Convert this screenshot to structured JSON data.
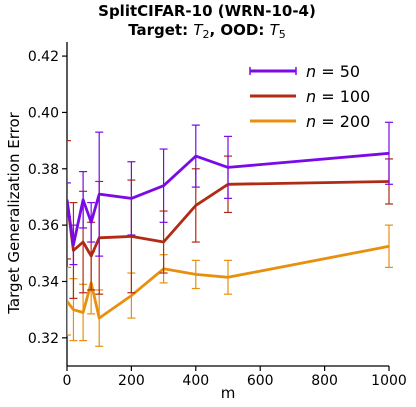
{
  "chart_data": {
    "type": "line",
    "title_line1": "SplitCIFAR-10 (WRN-10-4)",
    "title_line2_prefix": "Target: ",
    "title_line2_target": "T",
    "title_line2_target_sub": "2",
    "title_line2_mid": ", OOD: ",
    "title_line2_ood": "T",
    "title_line2_ood_sub": "5",
    "xlabel": "m",
    "ylabel": "Target Generalization Error",
    "xlim": [
      0,
      1000
    ],
    "ylim": [
      0.31,
      0.425
    ],
    "xticks": [
      "0",
      "200",
      "400",
      "600",
      "800",
      "1000"
    ],
    "yticks": [
      "0.32",
      "0.34",
      "0.36",
      "0.38",
      "0.40",
      "0.42"
    ],
    "legend_position": "top-right",
    "x": [
      0,
      20,
      50,
      75,
      100,
      200,
      300,
      400,
      500,
      1000
    ],
    "series": [
      {
        "name": "n = 50",
        "legend_var": "n",
        "legend_val": "= 50",
        "color": "#7a0ae6",
        "values": [
          0.369,
          0.353,
          0.369,
          0.361,
          0.371,
          0.3695,
          0.374,
          0.3845,
          0.3805,
          0.3855
        ],
        "err": [
          0.006,
          0.007,
          0.01,
          0.007,
          0.022,
          0.013,
          0.013,
          0.011,
          0.011,
          0.011
        ]
      },
      {
        "name": "n = 100",
        "legend_var": "n",
        "legend_val": "= 100",
        "color": "#b12b14",
        "values": [
          0.369,
          0.351,
          0.354,
          0.349,
          0.3555,
          0.356,
          0.354,
          0.367,
          0.3745,
          0.3755
        ],
        "err": [
          0.021,
          0.017,
          0.018,
          0.012,
          0.02,
          0.02,
          0.011,
          0.013,
          0.01,
          0.008
        ]
      },
      {
        "name": "n = 200",
        "legend_var": "n",
        "legend_val": "= 200",
        "color": "#e8900e",
        "values": [
          0.333,
          0.33,
          0.329,
          0.3395,
          0.327,
          0.335,
          0.3445,
          0.3425,
          0.3415,
          0.3525
        ],
        "err": [
          0.012,
          0.011,
          0.01,
          0.011,
          0.01,
          0.008,
          0.005,
          0.005,
          0.006,
          0.0075
        ]
      }
    ]
  }
}
